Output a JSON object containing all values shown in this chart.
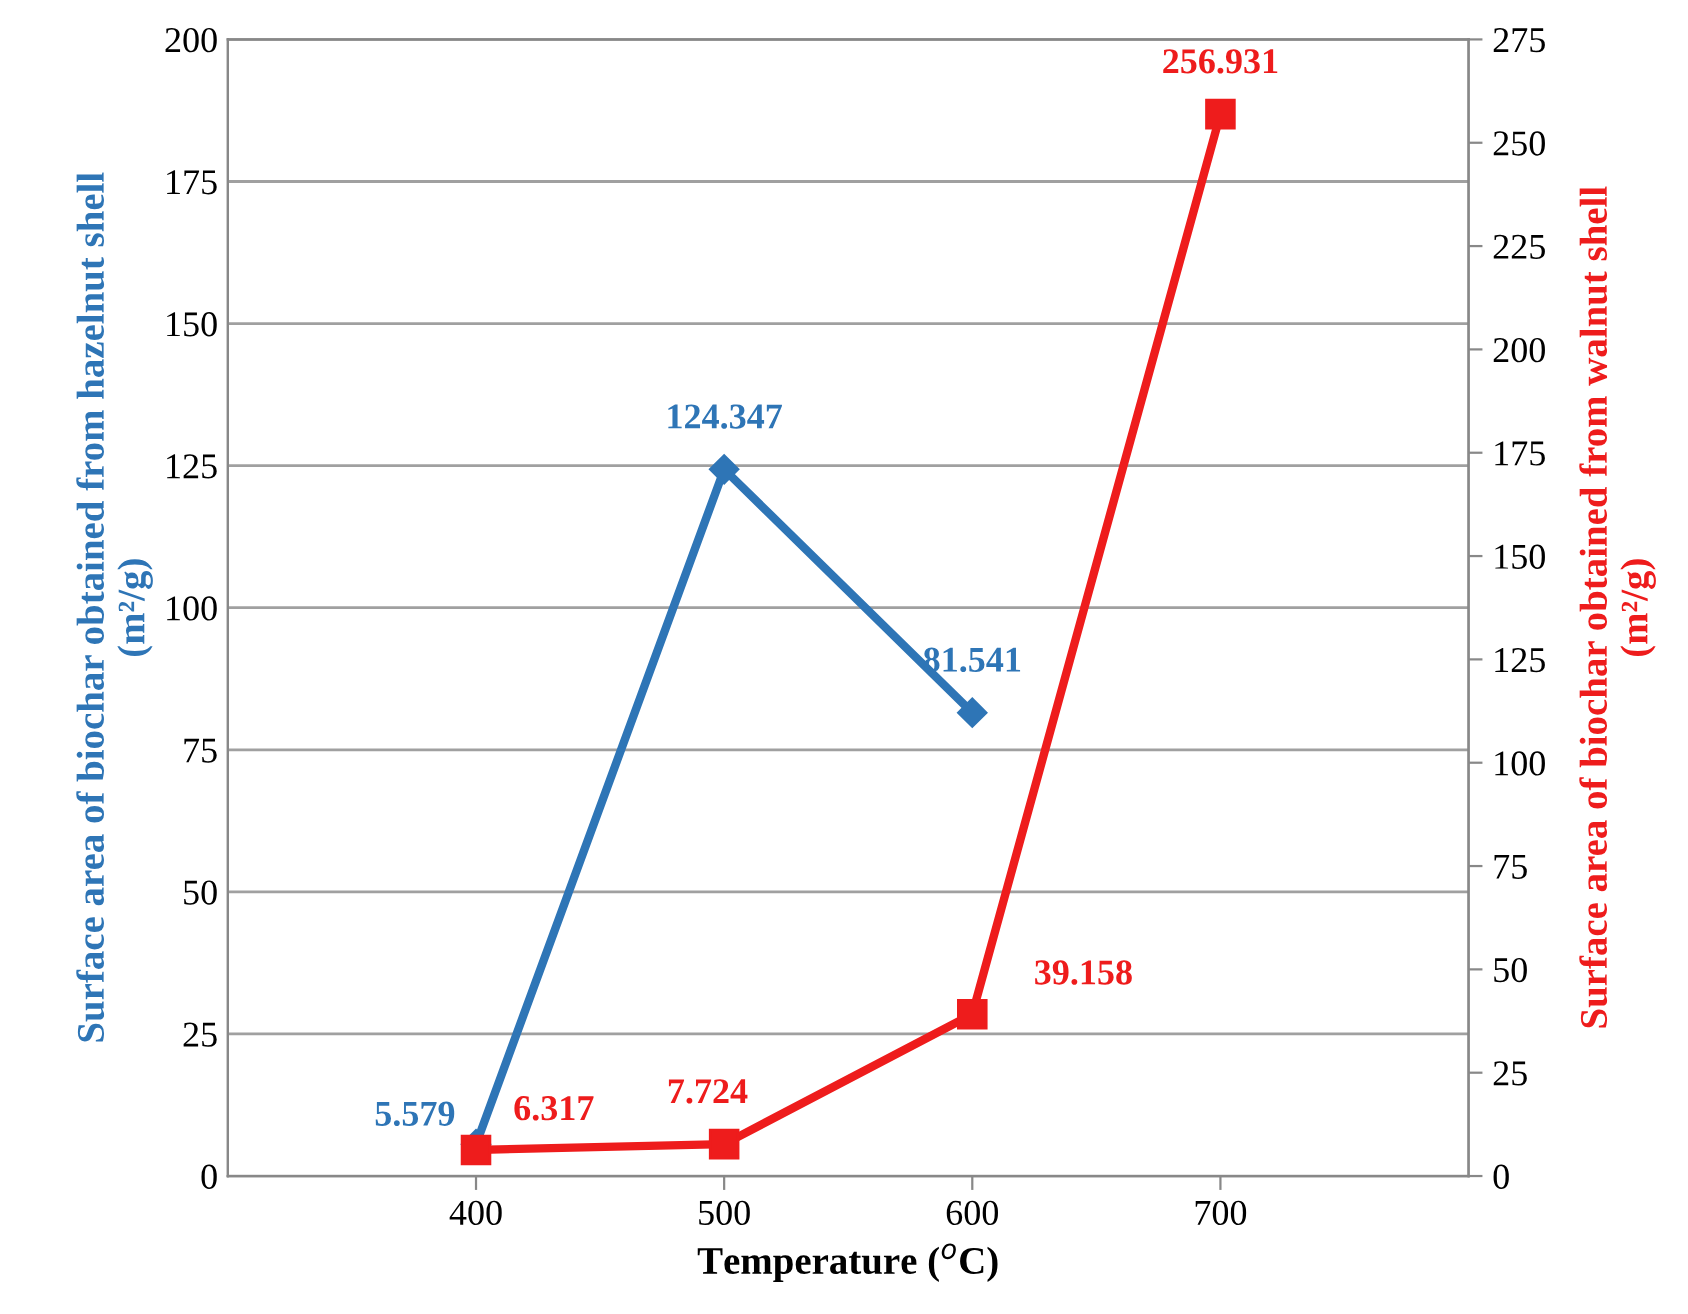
{
  "chart_data": {
    "type": "line",
    "xlabel": "Temperature ($^{o}$C)",
    "ylabel": "Surface area of biochar obtained from hazelnut shell\n(m²/g)",
    "y2label": "Surface area of biochar obtained from walnut shell\n(m²/g)",
    "categories": [
      "400",
      "500",
      "600",
      "700"
    ],
    "series": [
      {
        "color": "#2e75b6",
        "values": [
          5.579,
          124.347,
          81.541,
          null
        ],
        "marker": "diamond"
      },
      {
        "color": "#ee1c1c",
        "values": [
          6.317,
          7.724,
          39.158,
          256.931
        ],
        "marker": "square",
        "axis": "y2"
      }
    ],
    "ylim": [
      0,
      200
    ],
    "yticks": [
      0,
      25,
      50,
      75,
      100,
      125,
      150,
      175,
      200
    ],
    "y2lim": [
      0,
      275
    ],
    "y2ticks": [
      0,
      25,
      50,
      75,
      100,
      125,
      150,
      175,
      200,
      225,
      250,
      275
    ],
    "grid": "y",
    "data_labels": true,
    "line_style": "solid"
  }
}
